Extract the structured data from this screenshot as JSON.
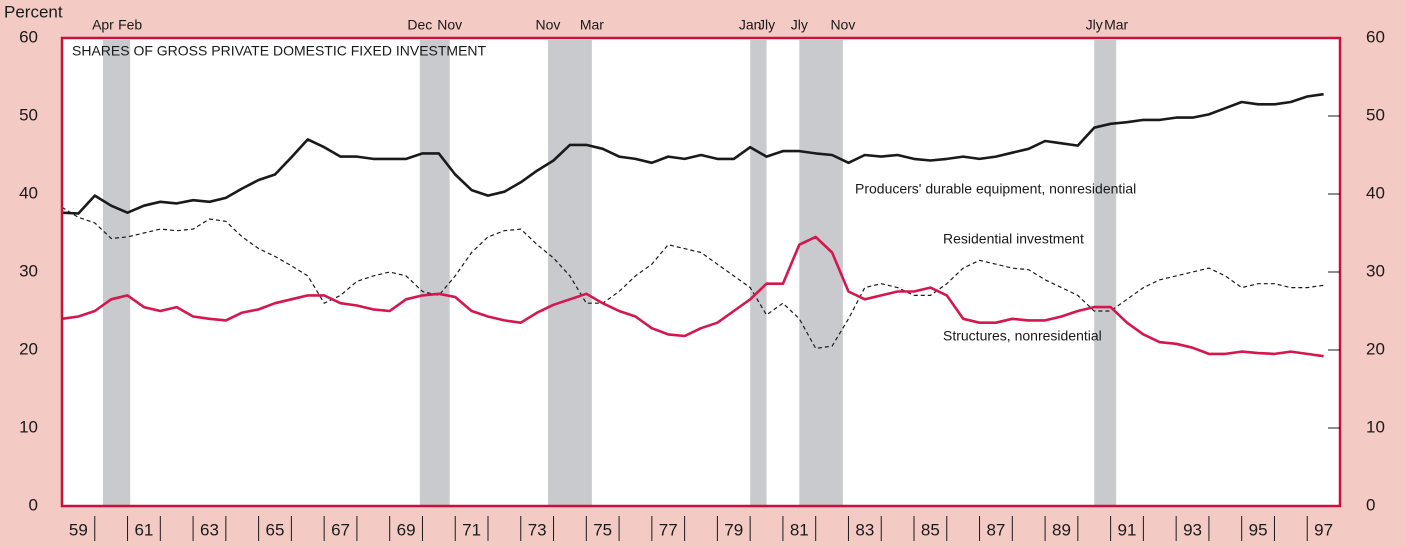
{
  "chart_data": {
    "type": "line",
    "title": "SHARES OF GROSS PRIVATE DOMESTIC FIXED INVESTMENT",
    "y_label": "Percent",
    "x": [
      1959,
      1959.5,
      1960,
      1960.5,
      1961,
      1961.5,
      1962,
      1962.5,
      1963,
      1963.5,
      1964,
      1964.5,
      1965,
      1965.5,
      1966,
      1966.5,
      1967,
      1967.5,
      1968,
      1968.5,
      1969,
      1969.5,
      1970,
      1970.5,
      1971,
      1971.5,
      1972,
      1972.5,
      1973,
      1973.5,
      1974,
      1974.5,
      1975,
      1975.5,
      1976,
      1976.5,
      1977,
      1977.5,
      1978,
      1978.5,
      1979,
      1979.5,
      1980,
      1980.5,
      1981,
      1981.5,
      1982,
      1982.5,
      1983,
      1983.5,
      1984,
      1984.5,
      1985,
      1985.5,
      1986,
      1986.5,
      1987,
      1987.5,
      1988,
      1988.5,
      1989,
      1989.5,
      1990,
      1990.5,
      1991,
      1991.5,
      1992,
      1992.5,
      1993,
      1993.5,
      1994,
      1994.5,
      1995,
      1995.5,
      1996,
      1996.5,
      1997,
      1997.5
    ],
    "series": [
      {
        "name": "Producers' durable equipment, nonresidential",
        "color": "#1a1a1a",
        "dash": false,
        "values": [
          37.6,
          37.5,
          39.8,
          38.5,
          37.6,
          38.5,
          39,
          38.8,
          39.2,
          39,
          39.5,
          40.7,
          41.8,
          42.5,
          44.7,
          47,
          46,
          44.8,
          44.8,
          44.5,
          44.5,
          44.5,
          45.2,
          45.2,
          42.5,
          40.5,
          39.8,
          40.3,
          41.5,
          43,
          44.3,
          46.3,
          46.3,
          45.8,
          44.8,
          44.5,
          44,
          44.8,
          44.5,
          45,
          44.5,
          44.5,
          46,
          44.8,
          45.5,
          45.5,
          45.2,
          45,
          44,
          45,
          44.8,
          45,
          44.5,
          44.3,
          44.5,
          44.8,
          44.5,
          44.8,
          45.3,
          45.8,
          46.8,
          46.5,
          46.2,
          48.5,
          49,
          49.2,
          49.5,
          49.5,
          49.8,
          49.8,
          50.2,
          51,
          51.8,
          51.5,
          51.5,
          51.8,
          52.5,
          52.8
        ]
      },
      {
        "name": "Residential investment",
        "color": "#1a1a1a",
        "dash": true,
        "values": [
          38.3,
          37,
          36.3,
          34.3,
          34.5,
          35,
          35.5,
          35.3,
          35.5,
          36.8,
          36.5,
          34.5,
          33,
          32,
          30.8,
          29.5,
          26,
          27,
          28.8,
          29.5,
          30,
          29.5,
          27.5,
          27,
          29.5,
          32.5,
          34.5,
          35.3,
          35.5,
          33.5,
          31.8,
          29.5,
          26,
          26,
          27.5,
          29.5,
          31,
          33.5,
          33,
          32.5,
          31,
          29.5,
          28,
          24.5,
          26,
          24,
          20.2,
          20.5,
          24,
          28,
          28.5,
          28,
          27,
          27,
          28.5,
          30.5,
          31.5,
          31,
          30.5,
          30.3,
          29,
          28,
          27,
          25,
          25,
          26.5,
          28,
          29,
          29.5,
          30,
          30.5,
          29.5,
          28,
          28.5,
          28.5,
          28,
          28,
          28.3
        ]
      },
      {
        "name": "Structures, nonresidential",
        "color": "#d4174e",
        "dash": false,
        "values": [
          24,
          24.3,
          25,
          26.5,
          27,
          25.5,
          25,
          25.5,
          24.3,
          24,
          23.8,
          24.8,
          25.2,
          26,
          26.5,
          27,
          27,
          26,
          25.7,
          25.2,
          25,
          26.5,
          27,
          27.2,
          26.8,
          25,
          24.3,
          23.8,
          23.5,
          24.8,
          25.8,
          26.5,
          27.2,
          26,
          25,
          24.3,
          22.8,
          22,
          21.8,
          22.8,
          23.5,
          25,
          26.5,
          28.5,
          28.5,
          33.5,
          34.5,
          32.5,
          27.5,
          26.5,
          27,
          27.5,
          27.5,
          28,
          27,
          24,
          23.5,
          23.5,
          24,
          23.8,
          23.8,
          24.3,
          25,
          25.5,
          25.5,
          23.5,
          22,
          21,
          20.8,
          20.3,
          19.5,
          19.5,
          19.8,
          19.6,
          19.5,
          19.8,
          19.5,
          19.2
        ]
      }
    ],
    "recessions": [
      {
        "start": 1960.25,
        "end": 1961.08,
        "start_label": "Apr",
        "end_label": "Feb"
      },
      {
        "start": 1969.92,
        "end": 1970.83,
        "start_label": "Dec",
        "end_label": "Nov"
      },
      {
        "start": 1973.83,
        "end": 1975.17,
        "start_label": "Nov",
        "end_label": "Mar"
      },
      {
        "start": 1980.0,
        "end": 1980.5,
        "start_label": "Jan",
        "end_label": "Jly"
      },
      {
        "start": 1981.5,
        "end": 1982.83,
        "start_label": "Jly",
        "end_label": "Nov"
      },
      {
        "start": 1990.5,
        "end": 1991.17,
        "start_label": "Jly",
        "end_label": "Mar"
      }
    ],
    "recession_color": "#c9cace",
    "xlim": [
      1959,
      1998
    ],
    "xticks": [
      {
        "value": 1959.5,
        "label": "59"
      },
      {
        "value": 1961.5,
        "label": "61"
      },
      {
        "value": 1963.5,
        "label": "63"
      },
      {
        "value": 1965.5,
        "label": "65"
      },
      {
        "value": 1967.5,
        "label": "67"
      },
      {
        "value": 1969.5,
        "label": "69"
      },
      {
        "value": 1971.5,
        "label": "71"
      },
      {
        "value": 1973.5,
        "label": "73"
      },
      {
        "value": 1975.5,
        "label": "75"
      },
      {
        "value": 1977.5,
        "label": "77"
      },
      {
        "value": 1979.5,
        "label": "79"
      },
      {
        "value": 1981.5,
        "label": "81"
      },
      {
        "value": 1983.5,
        "label": "83"
      },
      {
        "value": 1985.5,
        "label": "85"
      },
      {
        "value": 1987.5,
        "label": "87"
      },
      {
        "value": 1989.5,
        "label": "89"
      },
      {
        "value": 1991.5,
        "label": "91"
      },
      {
        "value": 1993.5,
        "label": "93"
      },
      {
        "value": 1995.5,
        "label": "95"
      },
      {
        "value": 1997.5,
        "label": "97"
      }
    ],
    "xtick_marks": [
      1960,
      1961,
      1962,
      1963,
      1964,
      1965,
      1966,
      1967,
      1968,
      1969,
      1970,
      1971,
      1972,
      1973,
      1974,
      1975,
      1976,
      1977,
      1978,
      1979,
      1980,
      1981,
      1982,
      1983,
      1984,
      1985,
      1986,
      1987,
      1988,
      1989,
      1990,
      1991,
      1992,
      1993,
      1994,
      1995,
      1996,
      1997
    ],
    "ylim": [
      0,
      60
    ],
    "yticks": [
      0,
      10,
      20,
      30,
      40,
      50,
      60
    ],
    "frame_color": "#c8103e"
  }
}
